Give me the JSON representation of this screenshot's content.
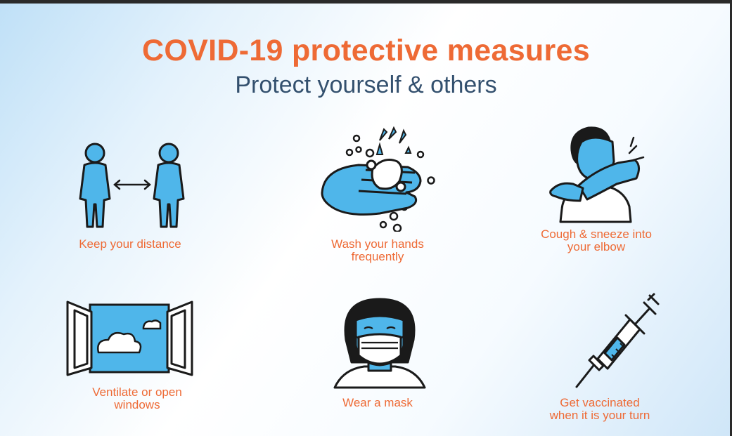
{
  "header": {
    "title": "COVID-19 protective measures",
    "subtitle": "Protect yourself & others"
  },
  "measures": [
    {
      "icon": "social-distance-icon",
      "caption": "Keep your distance"
    },
    {
      "icon": "hand-washing-icon",
      "caption": "Wash your hands\nfrequently"
    },
    {
      "icon": "cough-into-elbow-icon",
      "caption": "Cough & sneeze into\nyour elbow"
    },
    {
      "icon": "open-window-icon",
      "caption": "Ventilate or open\nwindows"
    },
    {
      "icon": "face-mask-icon",
      "caption": "Wear a mask"
    },
    {
      "icon": "syringe-icon",
      "caption": "Get vaccinated\nwhen it is your turn"
    }
  ],
  "colors": {
    "title": "#ee6a35",
    "subtitle": "#33506e",
    "icon_fill": "#4fb6ea",
    "outline": "#1a1a1a"
  }
}
